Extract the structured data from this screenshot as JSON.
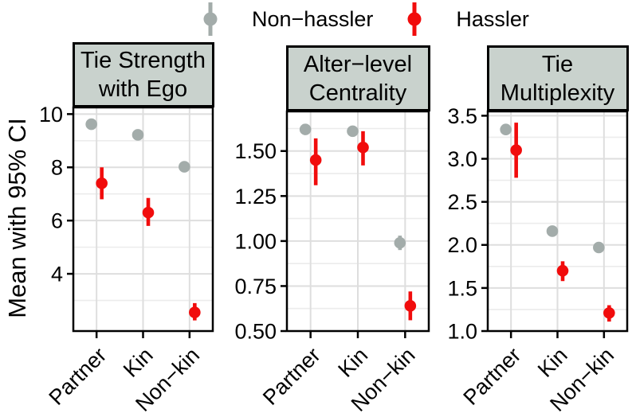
{
  "figure": {
    "y_axis_title": "Mean with 95% CI",
    "legend": [
      {
        "label": "Non−hassler",
        "color": "#a3acaa",
        "icon": "pointrange-glyph"
      },
      {
        "label": "Hassler",
        "color": "#f10c0c",
        "icon": "pointrange-glyph"
      }
    ]
  },
  "colors": {
    "non_hassler": "#a3acaa",
    "hassler": "#f10c0c",
    "panel_header_bg": "#c9d2cd",
    "grid_major": "#dedede",
    "grid_minor": "#ececec",
    "border": "#000000"
  },
  "chart_data": [
    {
      "type": "pointrange",
      "title": "Tie Strength with Ego",
      "title_lines": [
        "Tie Strength",
        "with Ego"
      ],
      "categories": [
        "Partner",
        "Kin",
        "Non−kin"
      ],
      "xlabel": "",
      "ylabel": "Mean with 95% CI",
      "ylim": [
        1.85,
        10.25
      ],
      "yticks": [
        4,
        6,
        8,
        10
      ],
      "ytick_labels": [
        "4",
        "6",
        "8",
        "10"
      ],
      "yminor": [
        3,
        5,
        7,
        9
      ],
      "grid": true,
      "legend_position": "top",
      "series": [
        {
          "name": "Non−hassler",
          "values": [
            9.62,
            9.22,
            8.02
          ],
          "lower": [
            9.49,
            9.09,
            7.89
          ],
          "upper": [
            9.75,
            9.35,
            8.15
          ]
        },
        {
          "name": "Hassler",
          "values": [
            7.4,
            6.3,
            2.55
          ],
          "lower": [
            6.8,
            5.8,
            2.25
          ],
          "upper": [
            8.0,
            6.85,
            2.9
          ]
        }
      ]
    },
    {
      "type": "pointrange",
      "title": "Alter−level Centrality",
      "title_lines": [
        "Alter−level",
        "Centrality"
      ],
      "categories": [
        "Partner",
        "Kin",
        "Non−kin"
      ],
      "xlabel": "",
      "ylabel": "Mean with 95% CI",
      "ylim": [
        0.5,
        1.72
      ],
      "yticks": [
        0.5,
        0.75,
        1.0,
        1.25,
        1.5
      ],
      "ytick_labels": [
        "0.50",
        "0.75",
        "1.00",
        "1.25",
        "1.50"
      ],
      "yminor": [
        0.625,
        0.875,
        1.125,
        1.375,
        1.625
      ],
      "grid": true,
      "legend_position": "top",
      "series": [
        {
          "name": "Non−hassler",
          "values": [
            1.62,
            1.61,
            0.99
          ],
          "lower": [
            1.59,
            1.58,
            0.95
          ],
          "upper": [
            1.65,
            1.64,
            1.03
          ]
        },
        {
          "name": "Hassler",
          "values": [
            1.45,
            1.52,
            0.64
          ],
          "lower": [
            1.31,
            1.42,
            0.56
          ],
          "upper": [
            1.57,
            1.61,
            0.72
          ]
        }
      ]
    },
    {
      "type": "pointrange",
      "title": "Tie Multiplexity",
      "title_lines": [
        "Tie",
        "Multiplexity"
      ],
      "categories": [
        "Partner",
        "Kin",
        "Non−kin"
      ],
      "xlabel": "",
      "ylabel": "Mean with 95% CI",
      "ylim": [
        1.0,
        3.55
      ],
      "yticks": [
        1.0,
        1.5,
        2.0,
        2.5,
        3.0,
        3.5
      ],
      "ytick_labels": [
        "1.0",
        "1.5",
        "2.0",
        "2.5",
        "3.0",
        "3.5"
      ],
      "yminor": [
        1.25,
        1.75,
        2.25,
        2.75,
        3.25
      ],
      "grid": true,
      "legend_position": "top",
      "series": [
        {
          "name": "Non−hassler",
          "values": [
            3.34,
            2.16,
            1.97
          ],
          "lower": [
            3.28,
            2.11,
            1.93
          ],
          "upper": [
            3.4,
            2.21,
            2.01
          ]
        },
        {
          "name": "Hassler",
          "values": [
            3.1,
            1.7,
            1.21
          ],
          "lower": [
            2.78,
            1.58,
            1.11
          ],
          "upper": [
            3.42,
            1.81,
            1.3
          ]
        }
      ]
    }
  ]
}
